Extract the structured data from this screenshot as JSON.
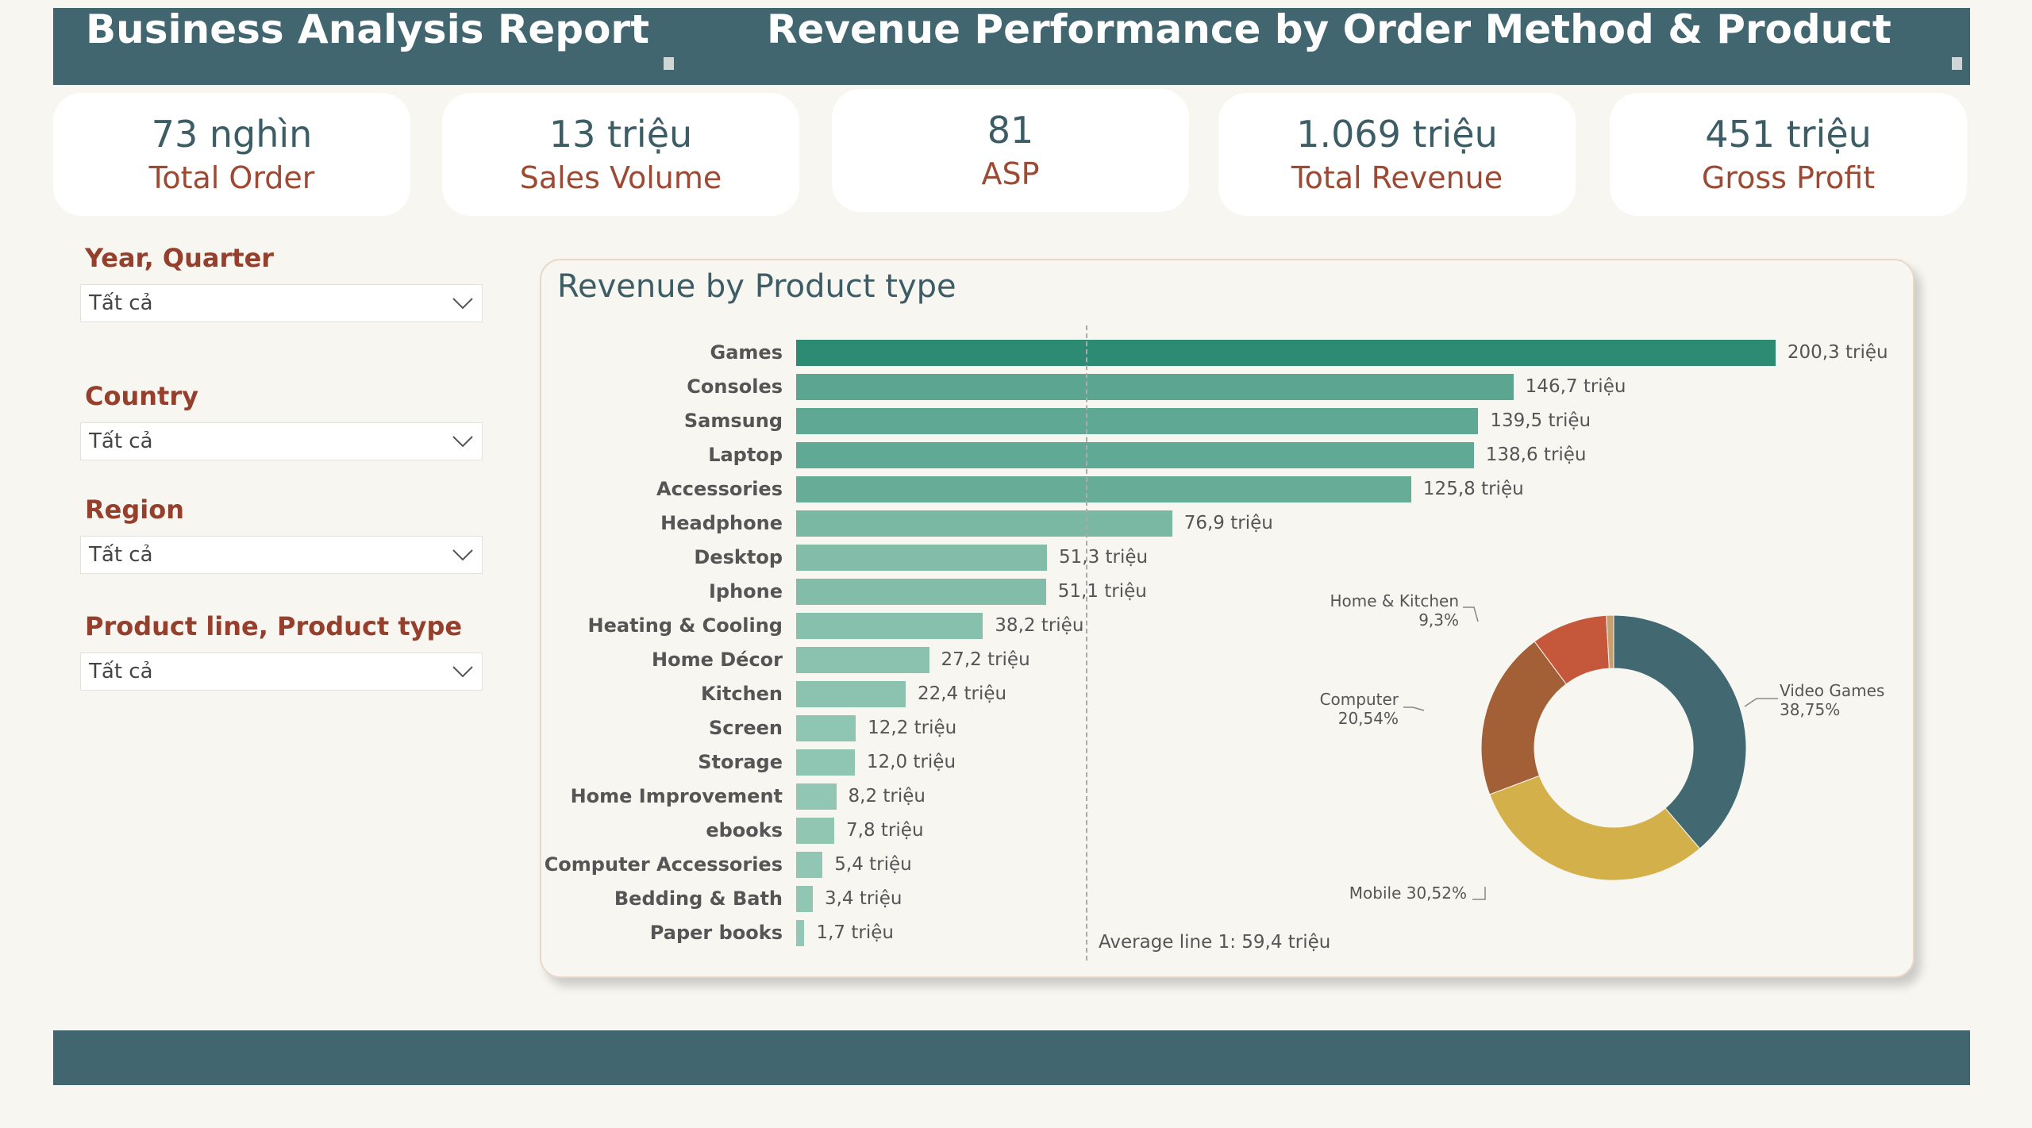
{
  "header": {
    "title_left": "Business Analysis Report",
    "title_right": "Revenue Performance by Order Method & Product"
  },
  "kpis": [
    {
      "value": "73 nghìn",
      "label": "Total Order"
    },
    {
      "value": "13 triệu",
      "label": "Sales Volume"
    },
    {
      "value": "81",
      "label": "ASP"
    },
    {
      "value": "1.069 triệu",
      "label": "Total Revenue"
    },
    {
      "value": "451 triệu",
      "label": "Gross Profit"
    }
  ],
  "filters": [
    {
      "label": "Year, Quarter",
      "value": "Tất cả"
    },
    {
      "label": "Country",
      "value": "Tất cả"
    },
    {
      "label": "Region",
      "value": "Tất cả"
    },
    {
      "label": "Product line, Product type",
      "value": "Tất cả"
    }
  ],
  "colors": {
    "header": "#41666f",
    "bar_dark": "#2e8b73",
    "bar_light": "#93c7b5"
  },
  "chart_data": [
    {
      "type": "bar",
      "orientation": "horizontal",
      "title": "Revenue by Product type",
      "unit": "triệu",
      "categories": [
        "Games",
        "Consoles",
        "Samsung",
        "Laptop",
        "Accessories",
        "Headphone",
        "Desktop",
        "Iphone",
        "Heating & Cooling",
        "Home Décor",
        "Kitchen",
        "Screen",
        "Storage",
        "Home Improvement",
        "ebooks",
        "Computer Accessories",
        "Bedding & Bath",
        "Paper books"
      ],
      "values": [
        200.3,
        146.7,
        139.5,
        138.6,
        125.8,
        76.9,
        51.3,
        51.1,
        38.2,
        27.2,
        22.4,
        12.2,
        12.0,
        8.2,
        7.8,
        5.4,
        3.4,
        1.7
      ],
      "value_labels": [
        "200,3 triệu",
        "146,7 triệu",
        "139,5 triệu",
        "138,6 triệu",
        "125,8 triệu",
        "76,9 triệu",
        "51,3 triệu",
        "51,1 triệu",
        "38,2 triệu",
        "27,2 triệu",
        "22,4 triệu",
        "12,2 triệu",
        "12,0 triệu",
        "8,2 triệu",
        "7,8 triệu",
        "5,4 triệu",
        "3,4 triệu",
        "1,7 triệu"
      ],
      "average": 59.4,
      "average_label": "Average line 1: 59,4 triệu"
    },
    {
      "type": "pie",
      "donut": true,
      "slices": [
        {
          "name": "Video Games",
          "value": 38.75,
          "label": "Video Games",
          "pct": "38,75%",
          "color": "#426871"
        },
        {
          "name": "Mobile",
          "value": 30.52,
          "label": "Mobile 30,52%",
          "pct": "",
          "color": "#d4b04a"
        },
        {
          "name": "Computer",
          "value": 20.54,
          "label": "Computer",
          "pct": "20,54%",
          "color": "#a35f35"
        },
        {
          "name": "Home & Kitchen",
          "value": 9.3,
          "label": "Home & Kitchen",
          "pct": "9,3%",
          "color": "#c5573a"
        },
        {
          "name": "",
          "value": 0.89,
          "label": "",
          "pct": "",
          "color": "#c8a070"
        }
      ]
    }
  ]
}
